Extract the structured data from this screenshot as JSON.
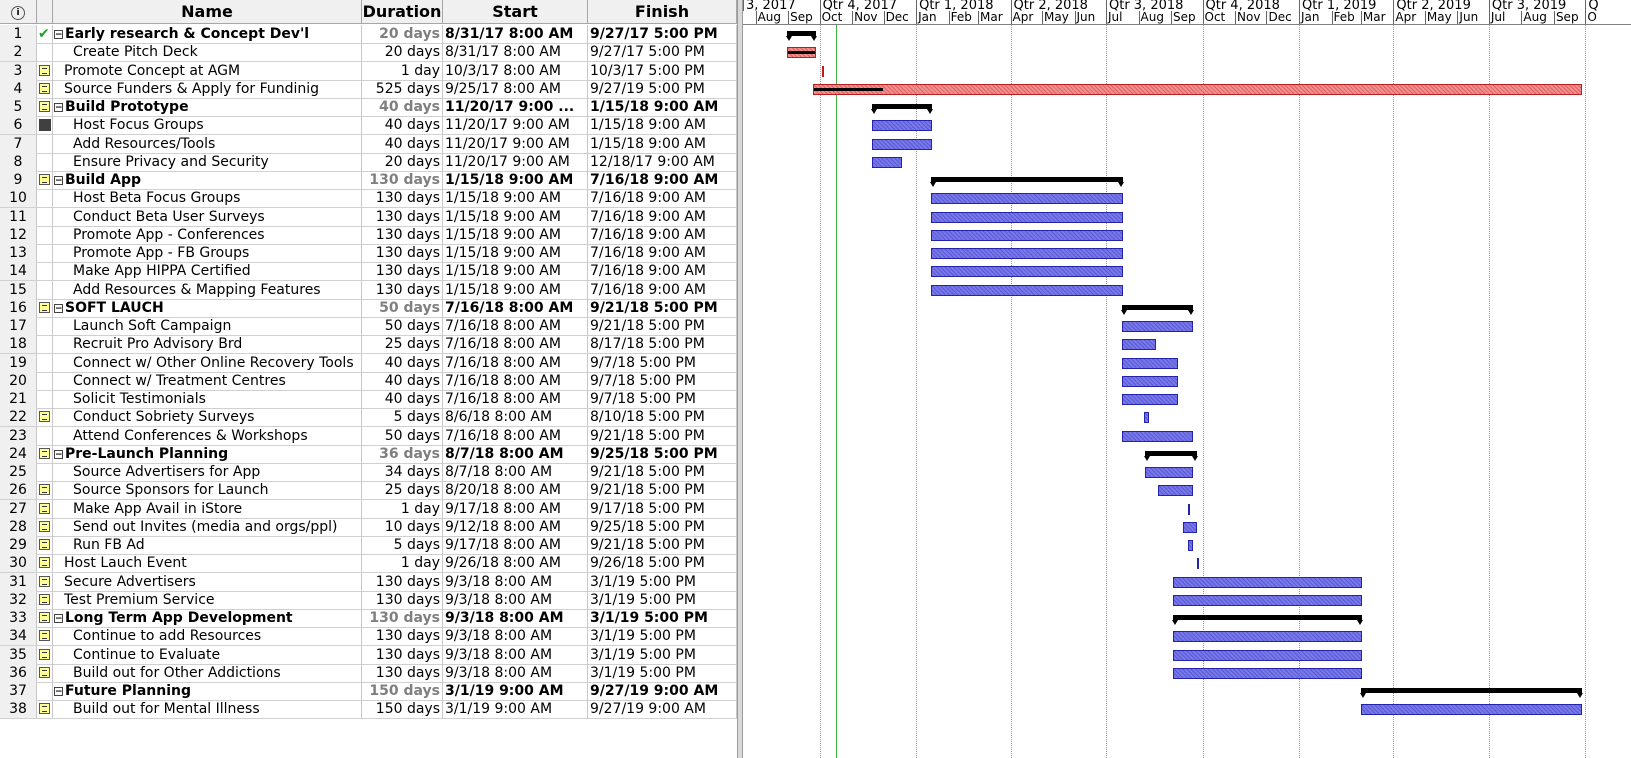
{
  "columns": {
    "id": "",
    "name": "Name",
    "duration": "Duration",
    "start": "Start",
    "finish": "Finish"
  },
  "colors": {
    "task_bar": "#7878e8",
    "critical_bar": "#f09090",
    "summary_bar": "#000000",
    "today_line": "#3fb43f"
  },
  "timescale": {
    "quarters": [
      "3, 2017",
      "Qtr 4, 2017",
      "Qtr 1, 2018",
      "Qtr 2, 2018",
      "Qtr 3, 2018",
      "Qtr 4, 2018",
      "Qtr 1, 2019",
      "Qtr 2, 2019",
      "Qtr 3, 2019",
      "Q"
    ],
    "months": [
      "Aug",
      "Sep",
      "Oct",
      "Nov",
      "Dec",
      "Jan",
      "Feb",
      "Mar",
      "Apr",
      "May",
      "Jun",
      "Jul",
      "Aug",
      "Sep",
      "Oct",
      "Nov",
      "Dec",
      "Jan",
      "Feb",
      "Mar",
      "Apr",
      "May",
      "Jun",
      "Jul",
      "Aug",
      "Sep",
      "O"
    ]
  },
  "tasks": [
    {
      "id": "1",
      "indicator": "check-icon",
      "summary": true,
      "level": 0,
      "name": "Early research & Concept Dev'l",
      "duration": "20 days",
      "start": "8/31/17 8:00 AM",
      "finish": "9/27/17 5:00 PM",
      "bar": "summary"
    },
    {
      "id": "2",
      "indicator": "",
      "summary": false,
      "level": 1,
      "name": "Create Pitch Deck",
      "duration": "20 days",
      "start": "8/31/17 8:00 AM",
      "finish": "9/27/17 5:00 PM",
      "bar": "critical",
      "progress": 1.0
    },
    {
      "id": "3",
      "indicator": "note-icon",
      "summary": false,
      "level": 0,
      "name": "Promote Concept at AGM",
      "duration": "1 day",
      "start": "10/3/17 8:00 AM",
      "finish": "10/3/17 5:00 PM",
      "bar": "critical"
    },
    {
      "id": "4",
      "indicator": "note-icon",
      "summary": false,
      "level": 0,
      "name": "Source Funders & Apply for Fundinig",
      "duration": "525 days",
      "start": "9/25/17 8:00 AM",
      "finish": "9/27/19 5:00 PM",
      "bar": "critical",
      "progress": 0.09
    },
    {
      "id": "5",
      "indicator": "note-icon",
      "summary": true,
      "level": 0,
      "name": "Build Prototype",
      "duration": "40 days",
      "start": "11/20/17 9:00 ...",
      "finish": "1/15/18 9:00 AM",
      "bar": "summary"
    },
    {
      "id": "6",
      "indicator": "square-icon",
      "summary": false,
      "level": 1,
      "name": "Host Focus Groups",
      "duration": "40 days",
      "start": "11/20/17 9:00 AM",
      "finish": "1/15/18 9:00 AM",
      "bar": "task"
    },
    {
      "id": "7",
      "indicator": "",
      "summary": false,
      "level": 1,
      "name": "Add Resources/Tools",
      "duration": "40 days",
      "start": "11/20/17 9:00 AM",
      "finish": "1/15/18 9:00 AM",
      "bar": "task"
    },
    {
      "id": "8",
      "indicator": "",
      "summary": false,
      "level": 1,
      "name": "Ensure Privacy and Security",
      "duration": "20 days",
      "start": "11/20/17 9:00 AM",
      "finish": "12/18/17 9:00 AM",
      "bar": "task"
    },
    {
      "id": "9",
      "indicator": "note-icon",
      "summary": true,
      "level": 0,
      "name": "Build App",
      "duration": "130 days",
      "start": "1/15/18 9:00 AM",
      "finish": "7/16/18 9:00 AM",
      "bar": "summary"
    },
    {
      "id": "10",
      "indicator": "",
      "summary": false,
      "level": 1,
      "name": "Host Beta Focus Groups",
      "duration": "130 days",
      "start": "1/15/18 9:00 AM",
      "finish": "7/16/18 9:00 AM",
      "bar": "task"
    },
    {
      "id": "11",
      "indicator": "",
      "summary": false,
      "level": 1,
      "name": "Conduct Beta User Surveys",
      "duration": "130 days",
      "start": "1/15/18 9:00 AM",
      "finish": "7/16/18 9:00 AM",
      "bar": "task"
    },
    {
      "id": "12",
      "indicator": "",
      "summary": false,
      "level": 1,
      "name": "Promote App - Conferences",
      "duration": "130 days",
      "start": "1/15/18 9:00 AM",
      "finish": "7/16/18 9:00 AM",
      "bar": "task"
    },
    {
      "id": "13",
      "indicator": "",
      "summary": false,
      "level": 1,
      "name": "Promote App - FB Groups",
      "duration": "130 days",
      "start": "1/15/18 9:00 AM",
      "finish": "7/16/18 9:00 AM",
      "bar": "task"
    },
    {
      "id": "14",
      "indicator": "",
      "summary": false,
      "level": 1,
      "name": "Make App HIPPA Certified",
      "duration": "130 days",
      "start": "1/15/18 9:00 AM",
      "finish": "7/16/18 9:00 AM",
      "bar": "task"
    },
    {
      "id": "15",
      "indicator": "",
      "summary": false,
      "level": 1,
      "name": "Add Resources & Mapping Features",
      "duration": "130 days",
      "start": "1/15/18 9:00 AM",
      "finish": "7/16/18 9:00 AM",
      "bar": "task"
    },
    {
      "id": "16",
      "indicator": "note-icon",
      "summary": true,
      "level": 0,
      "name": "SOFT LAUCH",
      "duration": "50 days",
      "start": "7/16/18 8:00 AM",
      "finish": "9/21/18 5:00 PM",
      "bar": "summary"
    },
    {
      "id": "17",
      "indicator": "",
      "summary": false,
      "level": 1,
      "name": "Launch Soft Campaign",
      "duration": "50 days",
      "start": "7/16/18 8:00 AM",
      "finish": "9/21/18 5:00 PM",
      "bar": "task"
    },
    {
      "id": "18",
      "indicator": "",
      "summary": false,
      "level": 1,
      "name": "Recruit Pro Advisory Brd",
      "duration": "25 days",
      "start": "7/16/18 8:00 AM",
      "finish": "8/17/18 5:00 PM",
      "bar": "task"
    },
    {
      "id": "19",
      "indicator": "",
      "summary": false,
      "level": 1,
      "name": "Connect w/ Other Online Recovery Tools",
      "duration": "40 days",
      "start": "7/16/18 8:00 AM",
      "finish": "9/7/18 5:00 PM",
      "bar": "task"
    },
    {
      "id": "20",
      "indicator": "",
      "summary": false,
      "level": 1,
      "name": "Connect w/ Treatment Centres",
      "duration": "40 days",
      "start": "7/16/18 8:00 AM",
      "finish": "9/7/18 5:00 PM",
      "bar": "task"
    },
    {
      "id": "21",
      "indicator": "",
      "summary": false,
      "level": 1,
      "name": "Solicit Testimonials",
      "duration": "40 days",
      "start": "7/16/18 8:00 AM",
      "finish": "9/7/18 5:00 PM",
      "bar": "task"
    },
    {
      "id": "22",
      "indicator": "note-icon",
      "summary": false,
      "level": 1,
      "name": "Conduct Sobriety Surveys",
      "duration": "5 days",
      "start": "8/6/18 8:00 AM",
      "finish": "8/10/18 5:00 PM",
      "bar": "task"
    },
    {
      "id": "23",
      "indicator": "",
      "summary": false,
      "level": 1,
      "name": "Attend Conferences & Workshops",
      "duration": "50 days",
      "start": "7/16/18 8:00 AM",
      "finish": "9/21/18 5:00 PM",
      "bar": "task"
    },
    {
      "id": "24",
      "indicator": "note-icon",
      "summary": true,
      "level": 0,
      "name": "Pre-Launch Planning",
      "duration": "36 days",
      "start": "8/7/18 8:00 AM",
      "finish": "9/25/18 5:00 PM",
      "bar": "summary"
    },
    {
      "id": "25",
      "indicator": "",
      "summary": false,
      "level": 1,
      "name": "Source Advertisers for App",
      "duration": "34 days",
      "start": "8/7/18 8:00 AM",
      "finish": "9/21/18 5:00 PM",
      "bar": "task"
    },
    {
      "id": "26",
      "indicator": "note-icon",
      "summary": false,
      "level": 1,
      "name": "Source Sponsors for Launch",
      "duration": "25 days",
      "start": "8/20/18 8:00 AM",
      "finish": "9/21/18 5:00 PM",
      "bar": "task"
    },
    {
      "id": "27",
      "indicator": "note-icon",
      "summary": false,
      "level": 1,
      "name": "Make App Avail in iStore",
      "duration": "1 day",
      "start": "9/17/18 8:00 AM",
      "finish": "9/17/18 5:00 PM",
      "bar": "task"
    },
    {
      "id": "28",
      "indicator": "note-icon",
      "summary": false,
      "level": 1,
      "name": "Send out Invites (media and orgs/ppl)",
      "duration": "10 days",
      "start": "9/12/18 8:00 AM",
      "finish": "9/25/18 5:00 PM",
      "bar": "task"
    },
    {
      "id": "29",
      "indicator": "note-icon",
      "summary": false,
      "level": 1,
      "name": "Run FB Ad",
      "duration": "5 days",
      "start": "9/17/18 8:00 AM",
      "finish": "9/21/18 5:00 PM",
      "bar": "task"
    },
    {
      "id": "30",
      "indicator": "note-icon",
      "summary": false,
      "level": 0,
      "name": "Host Lauch Event",
      "duration": "1 day",
      "start": "9/26/18 8:00 AM",
      "finish": "9/26/18 5:00 PM",
      "bar": "task"
    },
    {
      "id": "31",
      "indicator": "note-icon",
      "summary": false,
      "level": 0,
      "name": "Secure Advertisers",
      "duration": "130 days",
      "start": "9/3/18 8:00 AM",
      "finish": "3/1/19 5:00 PM",
      "bar": "task"
    },
    {
      "id": "32",
      "indicator": "note-icon",
      "summary": false,
      "level": 0,
      "name": "Test Premium Service",
      "duration": "130 days",
      "start": "9/3/18 8:00 AM",
      "finish": "3/1/19 5:00 PM",
      "bar": "task"
    },
    {
      "id": "33",
      "indicator": "note-icon",
      "summary": true,
      "level": 0,
      "name": "Long Term App Development",
      "duration": "130 days",
      "start": "9/3/18 8:00 AM",
      "finish": "3/1/19 5:00 PM",
      "bar": "summary"
    },
    {
      "id": "34",
      "indicator": "note-icon",
      "summary": false,
      "level": 1,
      "name": "Continue to add Resources",
      "duration": "130 days",
      "start": "9/3/18 8:00 AM",
      "finish": "3/1/19 5:00 PM",
      "bar": "task"
    },
    {
      "id": "35",
      "indicator": "note-icon",
      "summary": false,
      "level": 1,
      "name": "Continue to Evaluate",
      "duration": "130 days",
      "start": "9/3/18 8:00 AM",
      "finish": "3/1/19 5:00 PM",
      "bar": "task"
    },
    {
      "id": "36",
      "indicator": "note-icon",
      "summary": false,
      "level": 1,
      "name": "Build out for Other Addictions",
      "duration": "130 days",
      "start": "9/3/18 8:00 AM",
      "finish": "3/1/19 5:00 PM",
      "bar": "task"
    },
    {
      "id": "37",
      "indicator": "",
      "summary": true,
      "level": 0,
      "name": "Future Planning",
      "duration": "150 days",
      "start": "3/1/19 9:00 AM",
      "finish": "9/27/19 9:00 AM",
      "bar": "summary"
    },
    {
      "id": "38",
      "indicator": "note-icon",
      "summary": false,
      "level": 1,
      "name": "Build out for Mental Illness",
      "duration": "150 days",
      "start": "3/1/19 9:00 AM",
      "finish": "9/27/19 9:00 AM",
      "bar": "task"
    }
  ]
}
